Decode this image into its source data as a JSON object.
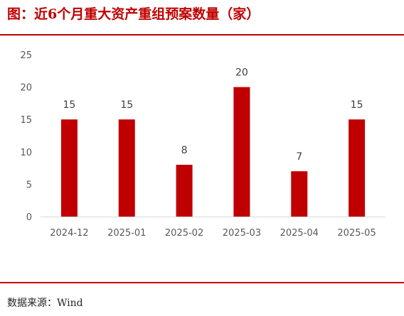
{
  "title": "图：近6个月重大资产重组预案数量（家）",
  "source": "数据来源：Wind",
  "colors": {
    "accent": "#c00000",
    "bar": "#c00000"
  },
  "chart_data": {
    "type": "bar",
    "categories": [
      "2024-12",
      "2025-01",
      "2025-02",
      "2025-03",
      "2025-04",
      "2025-05"
    ],
    "values": [
      15,
      15,
      8,
      20,
      7,
      15
    ],
    "title": "图：近6个月重大资产重组预案数量（家）",
    "xlabel": "",
    "ylabel": "",
    "ylim": [
      0,
      25
    ],
    "yticks": [
      0,
      5,
      10,
      15,
      20,
      25
    ],
    "grid": false,
    "data_labels": true
  }
}
